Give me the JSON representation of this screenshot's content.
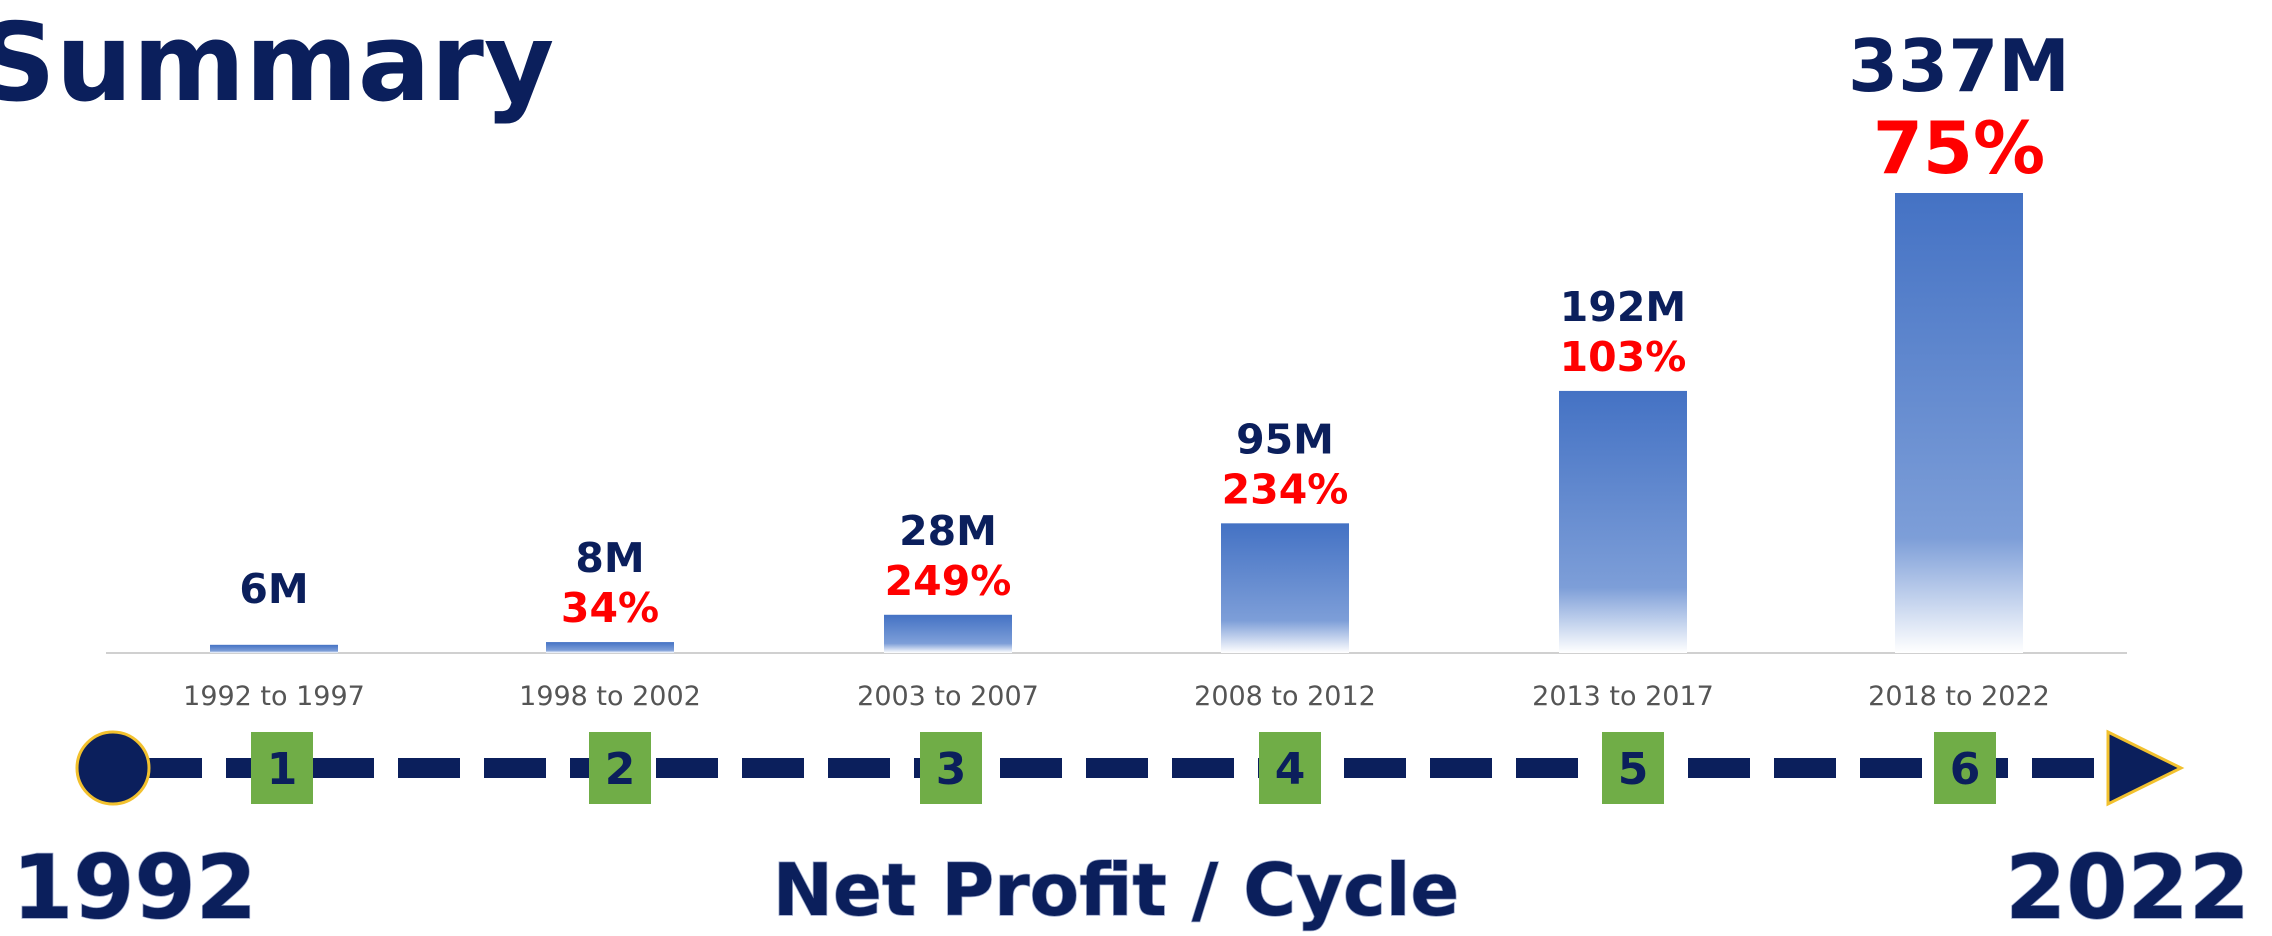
{
  "title": "Summary",
  "chart_data": {
    "type": "bar",
    "categories": [
      "1992 to 1997",
      "1998 to 2002",
      "2003 to 2007",
      "2008 to 2012",
      "2013 to 2017",
      "2018 to 2022"
    ],
    "values": [
      6,
      8,
      28,
      95,
      192,
      337
    ],
    "value_labels": [
      "6M",
      "8M",
      "28M",
      "95M",
      "192M",
      "337M"
    ],
    "growth_labels": [
      null,
      "34%",
      "249%",
      "234%",
      "103%",
      "75%"
    ],
    "color": "#4472c4"
  },
  "timeline": {
    "steps": [
      "1",
      "2",
      "3",
      "4",
      "5",
      "6"
    ],
    "start": "1992",
    "end": "2022",
    "caption": "Net Profit / Cycle"
  }
}
